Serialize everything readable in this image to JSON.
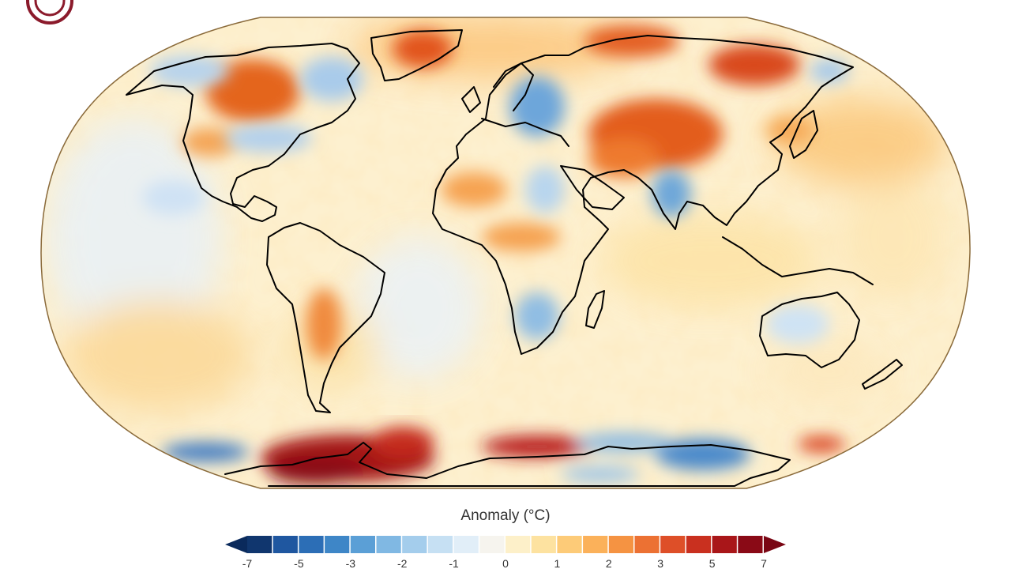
{
  "map": {
    "projection": "robinson",
    "colormap": "diverging blue-red",
    "land_outline_color": "#000000"
  },
  "legend": {
    "title": "Anomaly (°C)",
    "ticks": [
      "-7",
      "-5",
      "-3",
      "-2",
      "-1",
      "0",
      "1",
      "2",
      "3",
      "5",
      "7"
    ],
    "colors": [
      "#10366e",
      "#1f57a0",
      "#2c6eb6",
      "#3e86c7",
      "#5b9fd6",
      "#80b8e3",
      "#a4cdec",
      "#c6e0f3",
      "#e1eef8",
      "#f6f4ee",
      "#fdf0c9",
      "#fde2a0",
      "#fdcb78",
      "#fbb15a",
      "#f59342",
      "#ec7133",
      "#de4f28",
      "#c9301f",
      "#a91619",
      "#8a0a16"
    ],
    "under_color": "#0a2a5c",
    "over_color": "#7a0614"
  },
  "logo": {
    "icon": "organization-logo-icon",
    "color": "#8b1a2b"
  }
}
